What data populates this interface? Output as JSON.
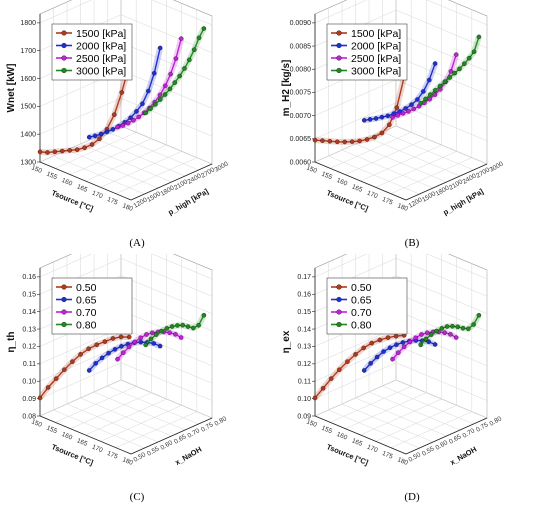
{
  "figure": {
    "panels": [
      {
        "id": "A",
        "tag": "(A)",
        "chart_data": {
          "type": "line",
          "zlabel": "Wnet [kW]",
          "xlabel": "Tsource [°C]",
          "ylabel": "p_high [kPa]",
          "zlim": [
            1300,
            1850
          ],
          "zticks": [
            "1300",
            "1400",
            "1500",
            "1600",
            "1700",
            "1800"
          ],
          "xticks": [
            "150",
            "155",
            "160",
            "165",
            "170",
            "175",
            "180"
          ],
          "yticks": [
            "1200",
            "1500",
            "1800",
            "2100",
            "2400",
            "2700",
            "3000"
          ],
          "legend_position": "top-left",
          "series": [
            {
              "name": "1500 [kPa]",
              "color": "#b03a1e",
              "z": [
                1340,
                1350,
                1365,
                1380,
                1395,
                1410,
                1430,
                1455,
                1490,
                1540,
                1610,
                1710,
                1830
              ]
            },
            {
              "name": "2000 [kPa]",
              "color": "#1f2fd0",
              "z": [
                1380,
                1395,
                1412,
                1430,
                1450,
                1472,
                1497,
                1525,
                1560,
                1600,
                1660,
                1740,
                1850
              ]
            },
            {
              "name": "2500 [kPa]",
              "color": "#c020d8",
              "z": [
                1395,
                1410,
                1428,
                1448,
                1470,
                1495,
                1523,
                1555,
                1592,
                1637,
                1692,
                1762,
                1855
              ]
            },
            {
              "name": "3000 [kPa]",
              "color": "#1f8a1f",
              "z": [
                1420,
                1445,
                1470,
                1497,
                1525,
                1555,
                1588,
                1622,
                1660,
                1702,
                1750,
                1805,
                1865
              ]
            }
          ]
        }
      },
      {
        "id": "B",
        "tag": "(B)",
        "chart_data": {
          "type": "line",
          "zlabel": "m_H2 [kg/s]",
          "xlabel": "Tsource [°C]",
          "ylabel": "p_high [kPa]",
          "zlim": [
            0.006,
            0.0093
          ],
          "zticks": [
            "0.0060",
            "0.0065",
            "0.0070",
            "0.0075",
            "0.0080",
            "0.0085",
            "0.0090"
          ],
          "xticks": [
            "150",
            "155",
            "160",
            "165",
            "170",
            "175",
            "180"
          ],
          "yticks": [
            "1200",
            "1500",
            "1800",
            "2100",
            "2400",
            "2700",
            "3000"
          ],
          "legend_position": "top-left",
          "series": [
            {
              "name": "1500 [kPa]",
              "color": "#b03a1e",
              "z": [
                0.00652,
                0.00658,
                0.00664,
                0.0067,
                0.00677,
                0.00685,
                0.00694,
                0.00705,
                0.00718,
                0.00735,
                0.00762,
                0.0081,
                0.0089
              ]
            },
            {
              "name": "2000 [kPa]",
              "color": "#1f2fd0",
              "z": [
                0.00688,
                0.00696,
                0.00704,
                0.00713,
                0.00722,
                0.00733,
                0.00744,
                0.00757,
                0.00772,
                0.0079,
                0.00815,
                0.00848,
                0.00893
              ]
            },
            {
              "name": "2500 [kPa]",
              "color": "#c020d8",
              "z": [
                0.0068,
                0.0069,
                0.007,
                0.0071,
                0.00721,
                0.00733,
                0.00746,
                0.0076,
                0.00776,
                0.00794,
                0.00817,
                0.00847,
                0.00892
              ]
            },
            {
              "name": "3000 [kPa]",
              "color": "#1f8a1f",
              "z": [
                0.00695,
                0.0071,
                0.00725,
                0.0074,
                0.00755,
                0.0077,
                0.00785,
                0.008,
                0.00815,
                0.00832,
                0.0085,
                0.0087,
                0.0091
              ]
            }
          ]
        }
      },
      {
        "id": "C",
        "tag": "(C)",
        "chart_data": {
          "type": "line",
          "zlabel": "η_th",
          "xlabel": "Tsource [°C]",
          "ylabel": "x_NaOH",
          "zlim": [
            0.08,
            0.165
          ],
          "zticks": [
            "0.08",
            "0.09",
            "0.10",
            "0.11",
            "0.12",
            "0.13",
            "0.14",
            "0.15",
            "0.16"
          ],
          "xticks": [
            "150",
            "155",
            "160",
            "165",
            "170",
            "175",
            "180"
          ],
          "yticks": [
            "0.50",
            "0.55",
            "0.60",
            "0.65",
            "0.70",
            "0.75",
            "0.80"
          ],
          "legend_position": "top-left",
          "series": [
            {
              "name": "0.50",
              "color": "#b03a1e",
              "z": [
                0.091,
                0.0995,
                0.107,
                0.1145,
                0.1215,
                0.128,
                0.1335,
                0.138,
                0.142,
                0.146,
                0.149,
                0.151
              ]
            },
            {
              "name": "0.65",
              "color": "#1f2fd0",
              "z": [
                0.105,
                0.111,
                0.116,
                0.1205,
                0.1245,
                0.128,
                0.131,
                0.1335,
                0.1355,
                0.137,
                0.138,
                0.138
              ]
            },
            {
              "name": "0.70",
              "color": "#c020d8",
              "z": [
                0.108,
                0.1135,
                0.1185,
                0.123,
                0.127,
                0.1305,
                0.133,
                0.135,
                0.1365,
                0.1375,
                0.138,
                0.1375
              ]
            },
            {
              "name": "0.80",
              "color": "#1f8a1f",
              "z": [
                0.112,
                0.117,
                0.121,
                0.1245,
                0.1275,
                0.13,
                0.132,
                0.1335,
                0.134,
                0.1345,
                0.1375,
                0.145
              ]
            }
          ]
        }
      },
      {
        "id": "D",
        "tag": "(D)",
        "chart_data": {
          "type": "line",
          "zlabel": "η_ex",
          "xlabel": "Tsource [°C]",
          "ylabel": "x_NaOH",
          "zlim": [
            0.09,
            0.175
          ],
          "zticks": [
            "0.09",
            "0.10",
            "0.11",
            "0.12",
            "0.13",
            "0.14",
            "0.15",
            "0.16",
            "0.17"
          ],
          "xticks": [
            "150",
            "155",
            "160",
            "165",
            "170",
            "175",
            "180"
          ],
          "yticks": [
            "0.50",
            "0.55",
            "0.60",
            "0.65",
            "0.70",
            "0.75",
            "0.80"
          ],
          "legend_position": "top-left",
          "series": [
            {
              "name": "0.50",
              "color": "#b03a1e",
              "z": [
                0.101,
                0.109,
                0.117,
                0.1245,
                0.1315,
                0.138,
                0.144,
                0.149,
                0.153,
                0.1565,
                0.1595,
                0.162
              ]
            },
            {
              "name": "0.65",
              "color": "#1f2fd0",
              "z": [
                0.115,
                0.121,
                0.1265,
                0.1315,
                0.1355,
                0.139,
                0.142,
                0.1445,
                0.1465,
                0.148,
                0.149,
                0.149
              ]
            },
            {
              "name": "0.70",
              "color": "#c020d8",
              "z": [
                0.118,
                0.1235,
                0.1285,
                0.133,
                0.137,
                0.1405,
                0.143,
                0.145,
                0.1465,
                0.1475,
                0.148,
                0.1475
              ]
            },
            {
              "name": "0.80",
              "color": "#1f8a1f",
              "z": [
                0.122,
                0.127,
                0.131,
                0.1345,
                0.1375,
                0.14,
                0.1415,
                0.1425,
                0.143,
                0.144,
                0.148,
                0.155
              ]
            }
          ]
        }
      }
    ]
  }
}
